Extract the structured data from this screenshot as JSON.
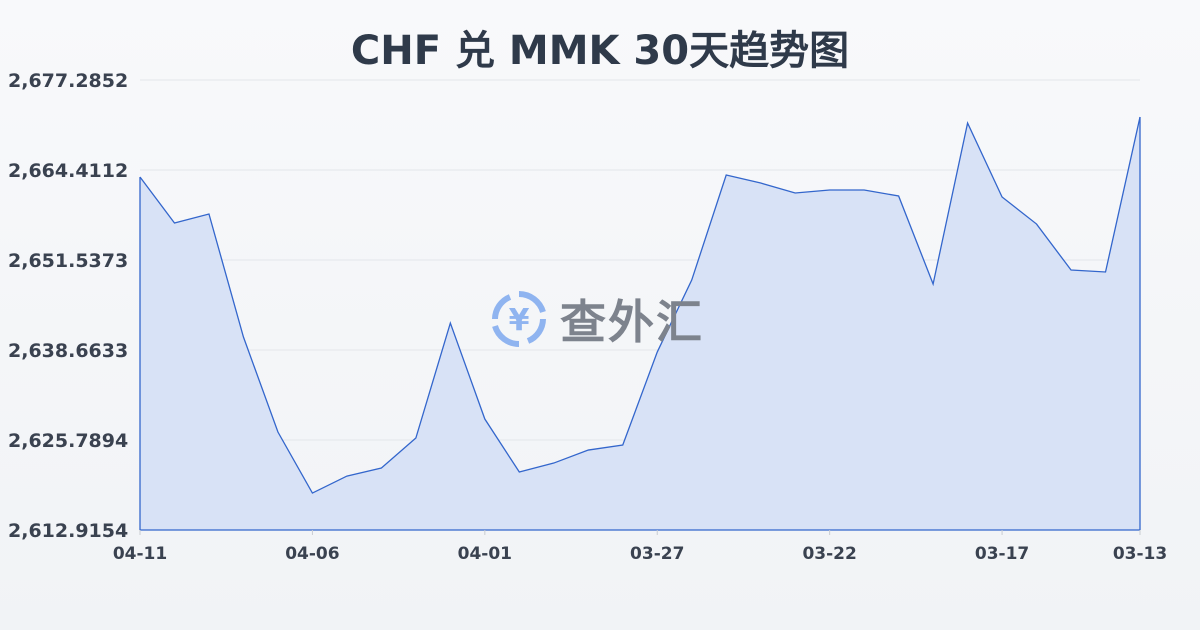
{
  "chart_data": {
    "type": "area",
    "title": "CHF 兑 MMK 30天趋势图",
    "xlabel": "",
    "ylabel": "",
    "x": [
      "04-11",
      "04-10",
      "04-09",
      "04-08",
      "04-07",
      "04-06",
      "04-05",
      "04-04",
      "04-03",
      "04-02",
      "04-01",
      "03-31",
      "03-30",
      "03-29",
      "03-28",
      "03-27",
      "03-26",
      "03-25",
      "03-24",
      "03-23",
      "03-22",
      "03-21",
      "03-20",
      "03-19",
      "03-18",
      "03-17",
      "03-16",
      "03-15",
      "03-14",
      "03-13"
    ],
    "x_tick_labels": [
      "04-11",
      "04-06",
      "04-01",
      "03-27",
      "03-22",
      "03-17",
      "03-13"
    ],
    "values": [
      2663.41,
      2656.83,
      2658.12,
      2640.52,
      2626.93,
      2618.2,
      2620.63,
      2621.78,
      2626.07,
      2642.52,
      2628.79,
      2621.21,
      2622.49,
      2624.35,
      2625.07,
      2638.37,
      2648.67,
      2663.69,
      2662.55,
      2661.12,
      2661.55,
      2661.55,
      2660.69,
      2648.1,
      2671.13,
      2660.55,
      2656.68,
      2650.1,
      2649.82,
      2671.99
    ],
    "y_tick_labels": [
      "2,677.2852",
      "2,664.4112",
      "2,651.5373",
      "2,638.6633",
      "2,625.7894",
      "2,612.9154"
    ],
    "ylim": [
      2612.9154,
      2677.2852
    ],
    "grid": true,
    "legend": "none",
    "colors": {
      "line": "#3366cc",
      "fill": "#d6e0f5",
      "grid": "#e3e6ea"
    }
  },
  "watermark": {
    "text": "查外汇",
    "icon": "yen-exchange-icon",
    "icon_color": "#8fb4f0"
  }
}
